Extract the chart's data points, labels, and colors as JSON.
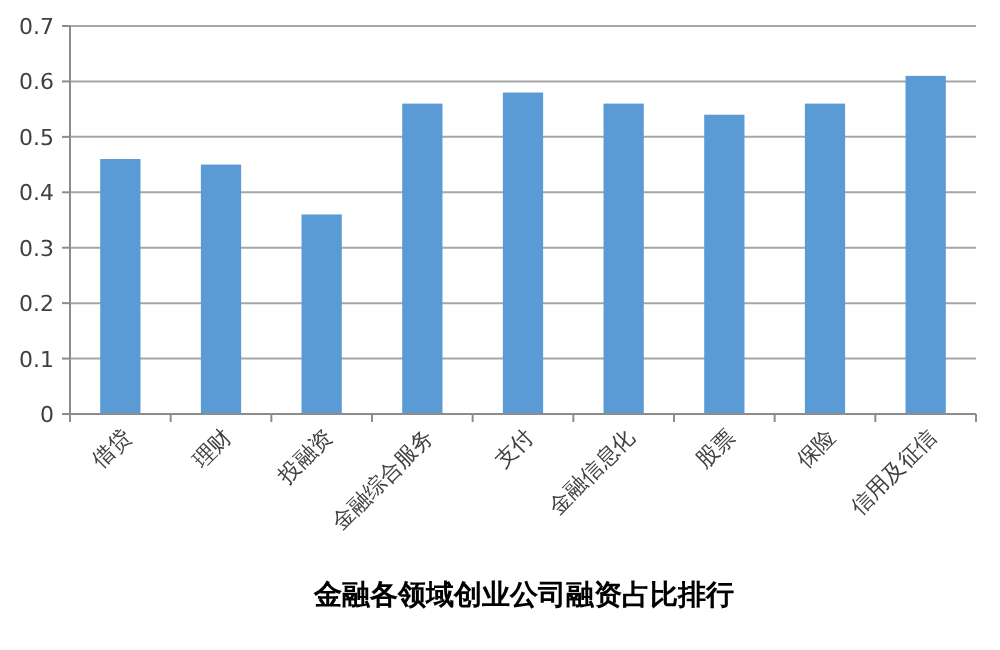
{
  "chart_data": {
    "type": "bar",
    "title": "金融各领域创业公司融资占比排行",
    "categories": [
      "借贷",
      "理财",
      "投融资",
      "金融综合服务",
      "支付",
      "金融信息化",
      "股票",
      "保险",
      "信用及征信"
    ],
    "values": [
      0.46,
      0.45,
      0.36,
      0.56,
      0.58,
      0.56,
      0.54,
      0.56,
      0.61
    ],
    "color": "#5b9bd5",
    "ylim": [
      0,
      0.7
    ],
    "yticks": [
      0,
      0.1,
      0.2,
      0.3,
      0.4,
      0.5,
      0.6,
      0.7
    ],
    "grid": "y"
  }
}
